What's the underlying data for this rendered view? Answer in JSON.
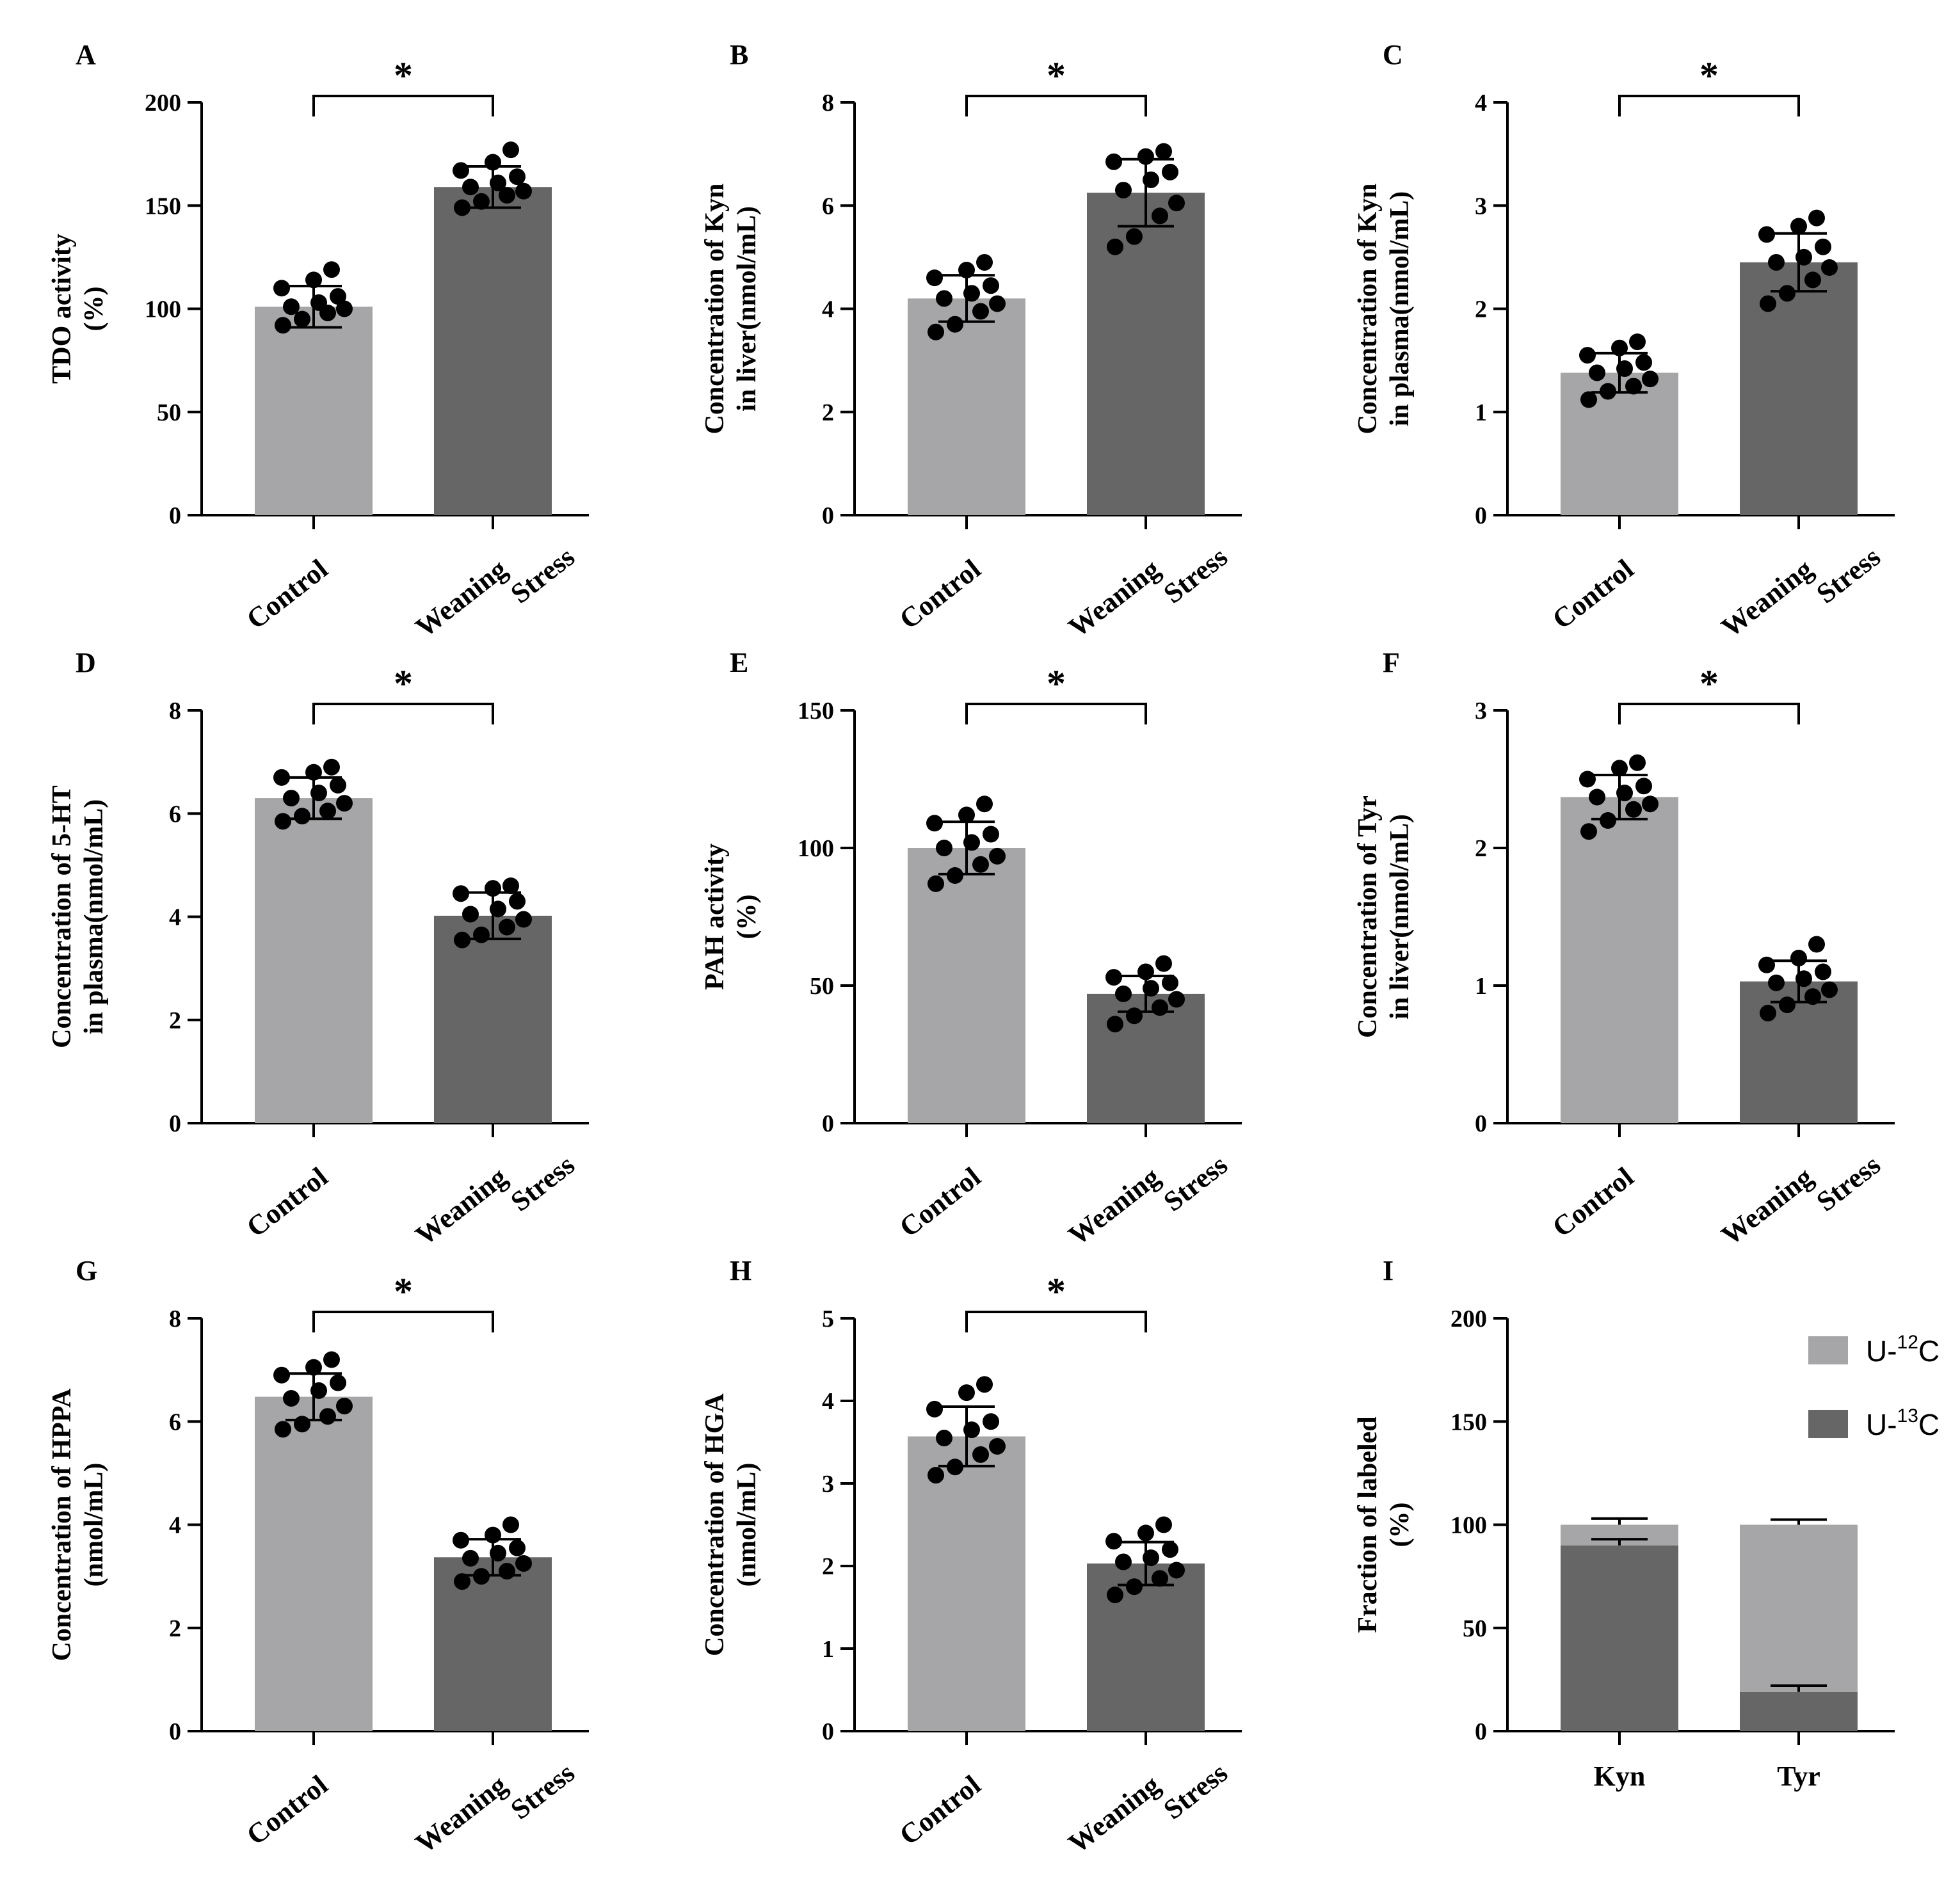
{
  "colors": {
    "control_bar": "#A6A6A8",
    "stress_bar": "#666666",
    "u12c": "#A6A6A8",
    "u13c": "#666666",
    "ink": "#000000"
  },
  "chart_data": [
    {
      "panel": "A",
      "type": "bar",
      "ylabel_line1": "TDO activity",
      "ylabel_line2": "(%)",
      "ylim": [
        0,
        200
      ],
      "yticks": [
        0,
        50,
        100,
        150,
        200
      ],
      "categories": [
        "Control",
        "Weaning Stress"
      ],
      "category_lines": [
        [
          "Control"
        ],
        [
          "Weaning",
          "Stress"
        ]
      ],
      "means": [
        101,
        159
      ],
      "sd": [
        10,
        10
      ],
      "points": [
        [
          92,
          95,
          98,
          100,
          101,
          103,
          106,
          110,
          114,
          119
        ],
        [
          149,
          152,
          155,
          157,
          159,
          161,
          164,
          167,
          171,
          177
        ]
      ],
      "significance": "*"
    },
    {
      "panel": "B",
      "type": "bar",
      "ylabel_line1": "Concentration of Kyn",
      "ylabel_line2": "in liver(nmol/mL)",
      "ylim": [
        0,
        8
      ],
      "yticks": [
        0,
        2,
        4,
        6,
        8
      ],
      "categories": [
        "Control",
        "Weaning Stress"
      ],
      "category_lines": [
        [
          "Control"
        ],
        [
          "Weaning",
          "Stress"
        ]
      ],
      "means": [
        4.2,
        6.25
      ],
      "sd": [
        0.45,
        0.65
      ],
      "points": [
        [
          3.55,
          3.7,
          3.95,
          4.1,
          4.2,
          4.3,
          4.45,
          4.6,
          4.75,
          4.9
        ],
        [
          5.2,
          5.4,
          5.8,
          6.05,
          6.3,
          6.5,
          6.65,
          6.85,
          6.95,
          7.05
        ]
      ],
      "significance": "*"
    },
    {
      "panel": "C",
      "type": "bar",
      "ylabel_line1": "Concentration of Kyn",
      "ylabel_line2": "in plasma(nmol/mL)",
      "ylim": [
        0,
        4
      ],
      "yticks": [
        0,
        1,
        2,
        3,
        4
      ],
      "categories": [
        "Control",
        "Weaning Stress"
      ],
      "category_lines": [
        [
          "Control"
        ],
        [
          "Weaning",
          "Stress"
        ]
      ],
      "means": [
        1.38,
        2.45
      ],
      "sd": [
        0.19,
        0.28
      ],
      "points": [
        [
          1.12,
          1.2,
          1.25,
          1.32,
          1.38,
          1.42,
          1.48,
          1.55,
          1.62,
          1.68
        ],
        [
          2.05,
          2.15,
          2.28,
          2.4,
          2.45,
          2.5,
          2.6,
          2.72,
          2.8,
          2.88
        ]
      ],
      "significance": "*"
    },
    {
      "panel": "D",
      "type": "bar",
      "ylabel_line1": "Concentration of 5-HT",
      "ylabel_line2": "in plasma(nmol/mL)",
      "ylim": [
        0,
        8
      ],
      "yticks": [
        0,
        2,
        4,
        6,
        8
      ],
      "categories": [
        "Control",
        "Weaning Stress"
      ],
      "category_lines": [
        [
          "Control"
        ],
        [
          "Weaning",
          "Stress"
        ]
      ],
      "means": [
        6.3,
        4.02
      ],
      "sd": [
        0.4,
        0.45
      ],
      "points": [
        [
          5.85,
          5.95,
          6.05,
          6.2,
          6.3,
          6.4,
          6.55,
          6.7,
          6.8,
          6.9
        ],
        [
          3.55,
          3.65,
          3.8,
          3.95,
          4.05,
          4.15,
          4.3,
          4.45,
          4.55,
          4.6
        ]
      ],
      "significance": "*"
    },
    {
      "panel": "E",
      "type": "bar",
      "ylabel_line1": "PAH activity",
      "ylabel_line2": "(%)",
      "ylim": [
        0,
        150
      ],
      "yticks": [
        0,
        50,
        100,
        150
      ],
      "categories": [
        "Control",
        "Weaning Stress"
      ],
      "category_lines": [
        [
          "Control"
        ],
        [
          "Weaning",
          "Stress"
        ]
      ],
      "means": [
        100,
        47
      ],
      "sd": [
        9.5,
        6.5
      ],
      "points": [
        [
          87,
          90,
          94,
          97,
          100,
          102,
          105,
          109,
          112,
          116
        ],
        [
          36,
          39,
          42,
          45,
          47,
          49,
          51,
          53,
          55,
          58
        ]
      ],
      "significance": "*"
    },
    {
      "panel": "F",
      "type": "bar",
      "ylabel_line1": "Concentration of Tyr",
      "ylabel_line2": "in liver(nmol/mL)",
      "ylim": [
        0,
        3
      ],
      "yticks": [
        0,
        1,
        2,
        3
      ],
      "categories": [
        "Control",
        "Weaning Stress"
      ],
      "category_lines": [
        [
          "Control"
        ],
        [
          "Weaning",
          "Stress"
        ]
      ],
      "means": [
        2.37,
        1.03
      ],
      "sd": [
        0.16,
        0.15
      ],
      "points": [
        [
          2.12,
          2.2,
          2.28,
          2.32,
          2.37,
          2.4,
          2.45,
          2.5,
          2.58,
          2.62
        ],
        [
          0.8,
          0.86,
          0.92,
          0.97,
          1.02,
          1.05,
          1.1,
          1.15,
          1.2,
          1.3
        ]
      ],
      "significance": "*"
    },
    {
      "panel": "G",
      "type": "bar",
      "ylabel_line1": "Concentration of HPPA",
      "ylabel_line2": "(nmol/mL)",
      "ylim": [
        0,
        8
      ],
      "yticks": [
        0,
        2,
        4,
        6,
        8
      ],
      "categories": [
        "Control",
        "Weaning Stress"
      ],
      "category_lines": [
        [
          "Control"
        ],
        [
          "Weaning",
          "Stress"
        ]
      ],
      "means": [
        6.48,
        3.37
      ],
      "sd": [
        0.45,
        0.35
      ],
      "points": [
        [
          5.85,
          5.95,
          6.1,
          6.3,
          6.45,
          6.6,
          6.75,
          6.9,
          7.05,
          7.2
        ],
        [
          2.9,
          3.0,
          3.1,
          3.25,
          3.35,
          3.45,
          3.55,
          3.7,
          3.8,
          4.0
        ]
      ],
      "significance": "*"
    },
    {
      "panel": "H",
      "type": "bar",
      "ylabel_line1": "Concentration of HGA",
      "ylabel_line2": "(nmol/mL)",
      "ylim": [
        0,
        5
      ],
      "yticks": [
        0,
        1,
        2,
        3,
        4,
        5
      ],
      "categories": [
        "Control",
        "Weaning Stress"
      ],
      "category_lines": [
        [
          "Control"
        ],
        [
          "Weaning",
          "Stress"
        ]
      ],
      "means": [
        3.57,
        2.03
      ],
      "sd": [
        0.36,
        0.26
      ],
      "points": [
        [
          3.1,
          3.2,
          3.35,
          3.45,
          3.55,
          3.65,
          3.75,
          3.9,
          4.1,
          4.2
        ],
        [
          1.65,
          1.75,
          1.85,
          1.95,
          2.05,
          2.1,
          2.2,
          2.3,
          2.4,
          2.5
        ]
      ],
      "significance": "*"
    },
    {
      "panel": "I",
      "type": "stacked-bar",
      "ylabel_line1": "Fraction of labeled",
      "ylabel_line2": "(%)",
      "ylim": [
        0,
        200
      ],
      "yticks": [
        0,
        50,
        100,
        150,
        200
      ],
      "categories": [
        "Kyn",
        "Tyr"
      ],
      "series": [
        {
          "name": "U-13C",
          "label_prefix": "U-",
          "label_sup": "13",
          "label_suffix": "C",
          "values": [
            90,
            19
          ],
          "sd": [
            3,
            3
          ]
        },
        {
          "name": "U-12C",
          "label_prefix": "U-",
          "label_sup": "12",
          "label_suffix": "C",
          "values": [
            10,
            81
          ],
          "sd": [
            3,
            2.5
          ]
        }
      ]
    }
  ]
}
